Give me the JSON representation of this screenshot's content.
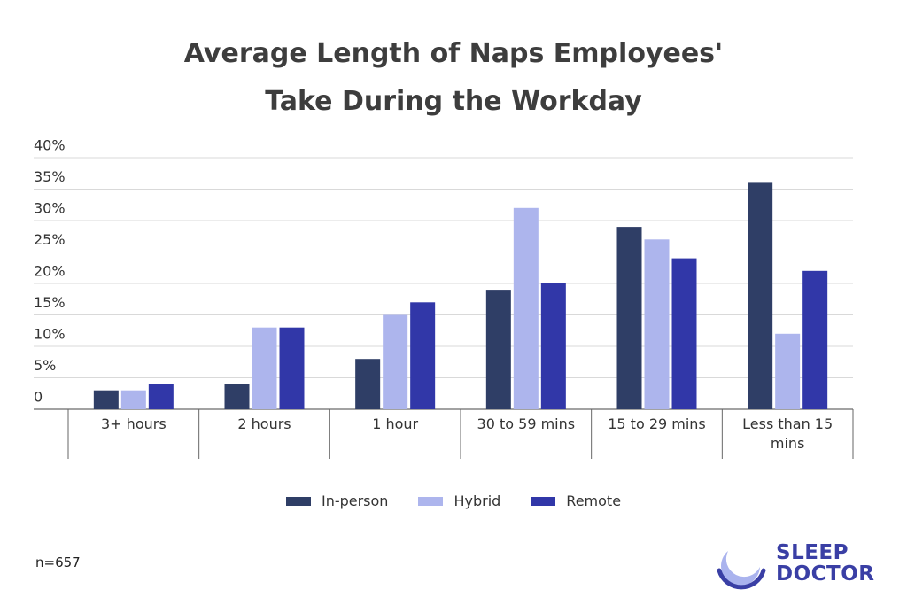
{
  "chart_data": {
    "type": "bar",
    "title": "Average Length of Naps Employees' Take During the Workday",
    "categories": [
      "3+ hours",
      "2 hours",
      "1 hour",
      "30 to 59 mins",
      "15 to 29 mins",
      "Less than 15 mins"
    ],
    "series": [
      {
        "name": "In-person",
        "color": "#2f3e66",
        "values": [
          3,
          4,
          8,
          19,
          29,
          36
        ]
      },
      {
        "name": "Hybrid",
        "color": "#adb5ed",
        "values": [
          3,
          13,
          15,
          32,
          27,
          12
        ]
      },
      {
        "name": "Remote",
        "color": "#3137a8",
        "values": [
          4,
          13,
          17,
          20,
          24,
          22
        ]
      }
    ],
    "ylim": [
      0,
      40
    ],
    "yticks": [
      0,
      {
        "value": 5,
        "label": "5%"
      },
      {
        "value": 10,
        "label": "10%"
      },
      {
        "value": 15,
        "label": "15%"
      },
      {
        "value": 20,
        "label": "20%"
      },
      {
        "value": 25,
        "label": "25%"
      },
      {
        "value": 30,
        "label": "30%"
      },
      {
        "value": 35,
        "label": "35%"
      },
      {
        "value": 40,
        "label": "40%"
      }
    ],
    "grid": true,
    "legend": "bottom",
    "note": "n=657",
    "brand": [
      "SLEEP",
      "DOCTOR"
    ]
  }
}
